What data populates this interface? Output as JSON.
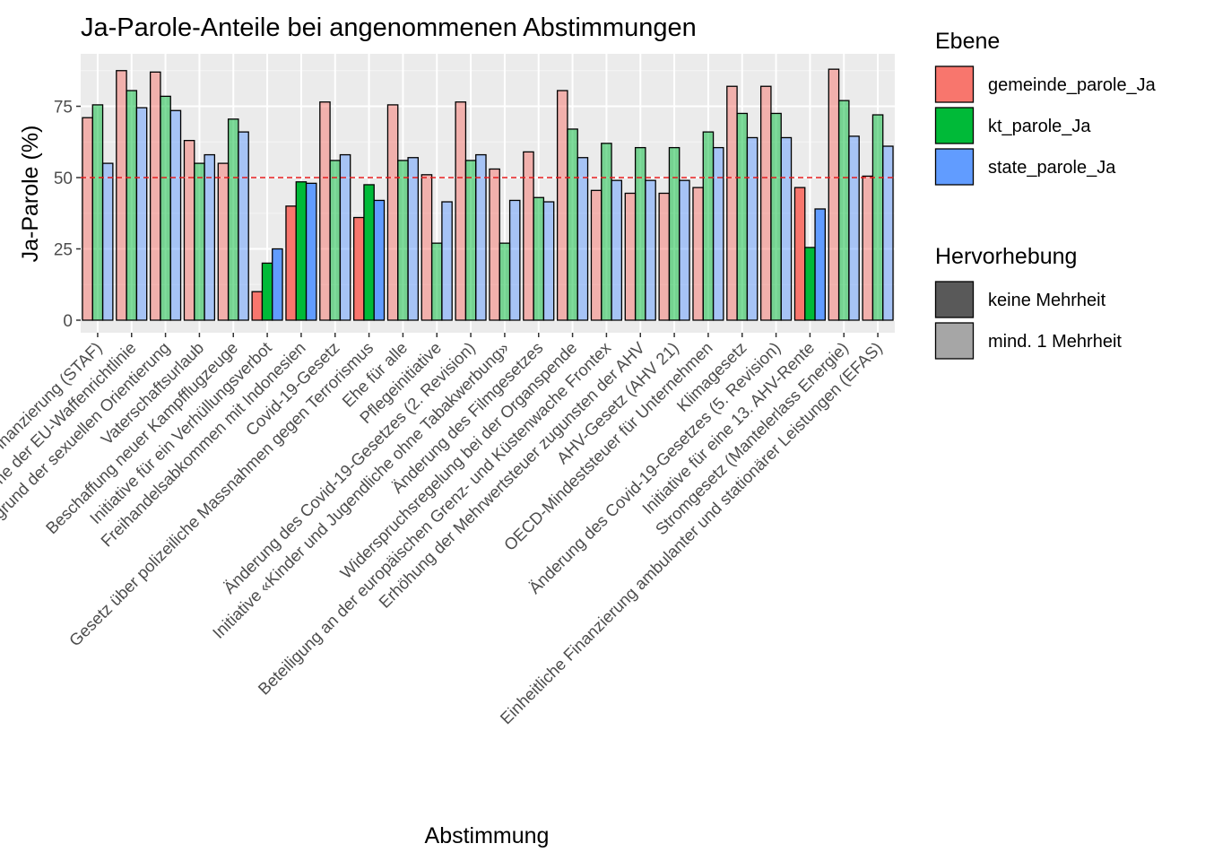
{
  "chart_data": {
    "type": "bar",
    "title": "Ja-Parole-Anteile bei angenommenen Abstimmungen",
    "xlabel": "Abstimmung",
    "ylabel": "Ja-Parole (%)",
    "ylim": [
      0,
      90
    ],
    "yticks": [
      0,
      25,
      50,
      75
    ],
    "reference_line": 50,
    "grid": true,
    "legend_position": "right",
    "categories": [
      "Steuerreform und AHV-Finanzierung (STAF)",
      "Übernahme der EU-Waffenrichtlinie",
      "Verbot der Diskriminierung aufgrund der sexuellen Orientierung",
      "Vaterschaftsurlaub",
      "Beschaffung neuer Kampfflugzeuge",
      "Initiative für ein Verhüllungsverbot",
      "Freihandelsabkommen mit Indonesien",
      "Covid-19-Gesetz",
      "Gesetz über polizeiliche Massnahmen gegen Terrorismus",
      "Ehe für alle",
      "Pflegeinitiative",
      "Änderung des Covid-19-Gesetzes (2. Revision)",
      "Initiative «Kinder und Jugendliche ohne Tabakwerbung»",
      "Änderung des Filmgesetzes",
      "Widerspruchsregelung bei der Organspende",
      "Beteiligung an der europäischen Grenz- und Küstenwache Frontex",
      "Erhöhung der Mehrwertsteuer zugunsten der AHV",
      "AHV-Gesetz (AHV 21)",
      "OECD-Mindeststeuer für Unternehmen",
      "Klimagesetz",
      "Änderung des Covid-19-Gesetzes (5. Revision)",
      "Initiative für eine 13. AHV-Rente",
      "Stromgesetz (Mantelerlass Energie)",
      "Einheitliche Finanzierung ambulanter und stationärer Leistungen (EFAS)"
    ],
    "series": [
      {
        "name": "gemeinde_parole_Ja",
        "color": "#F8766D",
        "values": [
          71,
          87.5,
          87,
          63,
          55,
          10,
          40,
          76.5,
          36,
          75.5,
          51,
          76.5,
          53,
          59,
          80.5,
          45.5,
          44.5,
          44.5,
          46.5,
          82,
          82,
          46.5,
          88,
          50.5
        ]
      },
      {
        "name": "kt_parole_Ja",
        "color": "#00BA38",
        "values": [
          75.5,
          80.5,
          78.5,
          55,
          70.5,
          20,
          48.5,
          56,
          47.5,
          56,
          27,
          56,
          27,
          43,
          67,
          62,
          60.5,
          60.5,
          66,
          72.5,
          72.5,
          25.5,
          77,
          72
        ]
      },
      {
        "name": "state_parole_Ja",
        "color": "#619CFF",
        "values": [
          55,
          74.5,
          73.5,
          58,
          66,
          25,
          48,
          58,
          42,
          57,
          41.5,
          58,
          42,
          41.5,
          57,
          49,
          49,
          49,
          60.5,
          64,
          64,
          39,
          64.5,
          61
        ]
      }
    ],
    "highlight_no_majority": [
      false,
      false,
      false,
      false,
      false,
      true,
      true,
      false,
      true,
      false,
      false,
      false,
      false,
      false,
      false,
      false,
      false,
      false,
      false,
      false,
      false,
      true,
      false,
      false
    ],
    "legend": {
      "ebene_title": "Ebene",
      "hervorhebung_title": "Hervorhebung",
      "hervorhebung_items": [
        {
          "label": "keine Mehrheit",
          "color": "#595959"
        },
        {
          "label": "mind. 1 Mehrheit",
          "color": "#A6A6A6"
        }
      ]
    }
  }
}
